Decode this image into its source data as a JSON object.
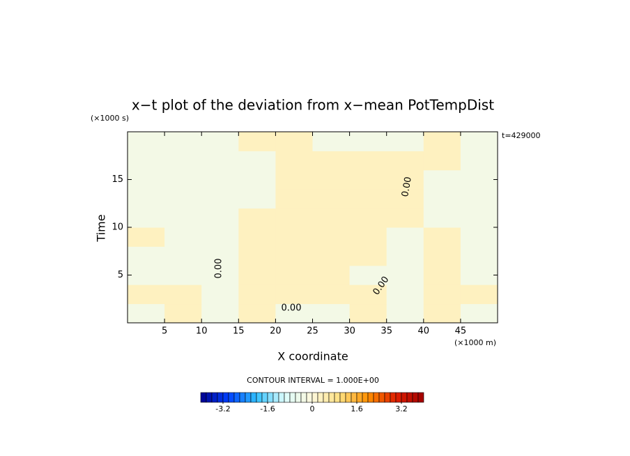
{
  "chart_data": {
    "type": "contour",
    "title": "x−t plot of the deviation from x−mean PotTempDist",
    "x_label": "X coordinate",
    "y_label": "Time",
    "x_unit": "(×1000 m)",
    "y_unit": "(×1000 s)",
    "time_note": "t=429000",
    "contour_label": "0.00",
    "contour_interval_text": "CONTOUR INTERVAL = 1.000E+00",
    "xlim": [
      0,
      50
    ],
    "ylim": [
      0,
      20
    ],
    "xticks": [
      5,
      10,
      15,
      20,
      25,
      30,
      35,
      40,
      45
    ],
    "yticks": [
      5,
      10,
      15
    ],
    "x": [
      0,
      5,
      10,
      15,
      20,
      25,
      30,
      35,
      40,
      45,
      50
    ],
    "y": [
      0,
      2,
      4,
      6,
      8,
      10,
      12,
      14,
      16,
      18,
      20
    ],
    "z": [
      [
        -0.3,
        0.3,
        -0.3,
        0.3,
        -0.3,
        -0.3,
        0.3,
        -0.3,
        0.3,
        -0.3
      ],
      [
        0.3,
        0.3,
        -0.3,
        0.3,
        0.3,
        0.3,
        0.3,
        -0.3,
        0.3,
        0.3
      ],
      [
        -0.3,
        -0.3,
        -0.3,
        0.3,
        0.3,
        0.3,
        -0.3,
        -0.3,
        0.3,
        -0.3
      ],
      [
        -0.3,
        -0.3,
        -0.3,
        0.3,
        0.3,
        0.3,
        0.3,
        -0.3,
        0.3,
        -0.3
      ],
      [
        0.3,
        -0.3,
        -0.3,
        0.3,
        0.3,
        0.3,
        0.3,
        -0.3,
        0.3,
        -0.3
      ],
      [
        -0.3,
        -0.3,
        -0.3,
        0.3,
        0.3,
        0.3,
        0.3,
        0.3,
        -0.3,
        -0.3
      ],
      [
        -0.3,
        -0.3,
        -0.3,
        -0.3,
        0.3,
        0.3,
        0.3,
        0.3,
        -0.3,
        -0.3
      ],
      [
        -0.3,
        -0.3,
        -0.3,
        -0.3,
        0.3,
        0.3,
        0.3,
        0.3,
        -0.3,
        -0.3
      ],
      [
        -0.3,
        -0.3,
        -0.3,
        -0.3,
        0.3,
        0.3,
        0.3,
        0.3,
        0.3,
        -0.3
      ],
      [
        -0.3,
        -0.3,
        -0.3,
        0.3,
        0.3,
        -0.3,
        -0.3,
        -0.3,
        0.3,
        -0.3
      ]
    ],
    "colorbar": {
      "lim": [
        -4,
        4
      ],
      "interval": 0.2,
      "ticks": [
        -3.2,
        -1.6,
        0,
        1.6,
        3.2
      ],
      "color_stops": [
        "#00008c",
        "#0040ff",
        "#30c0ff",
        "#dcfcfc",
        "#fdf8dc",
        "#ffe080",
        "#ff9000",
        "#e02000",
        "#a00000"
      ]
    }
  }
}
